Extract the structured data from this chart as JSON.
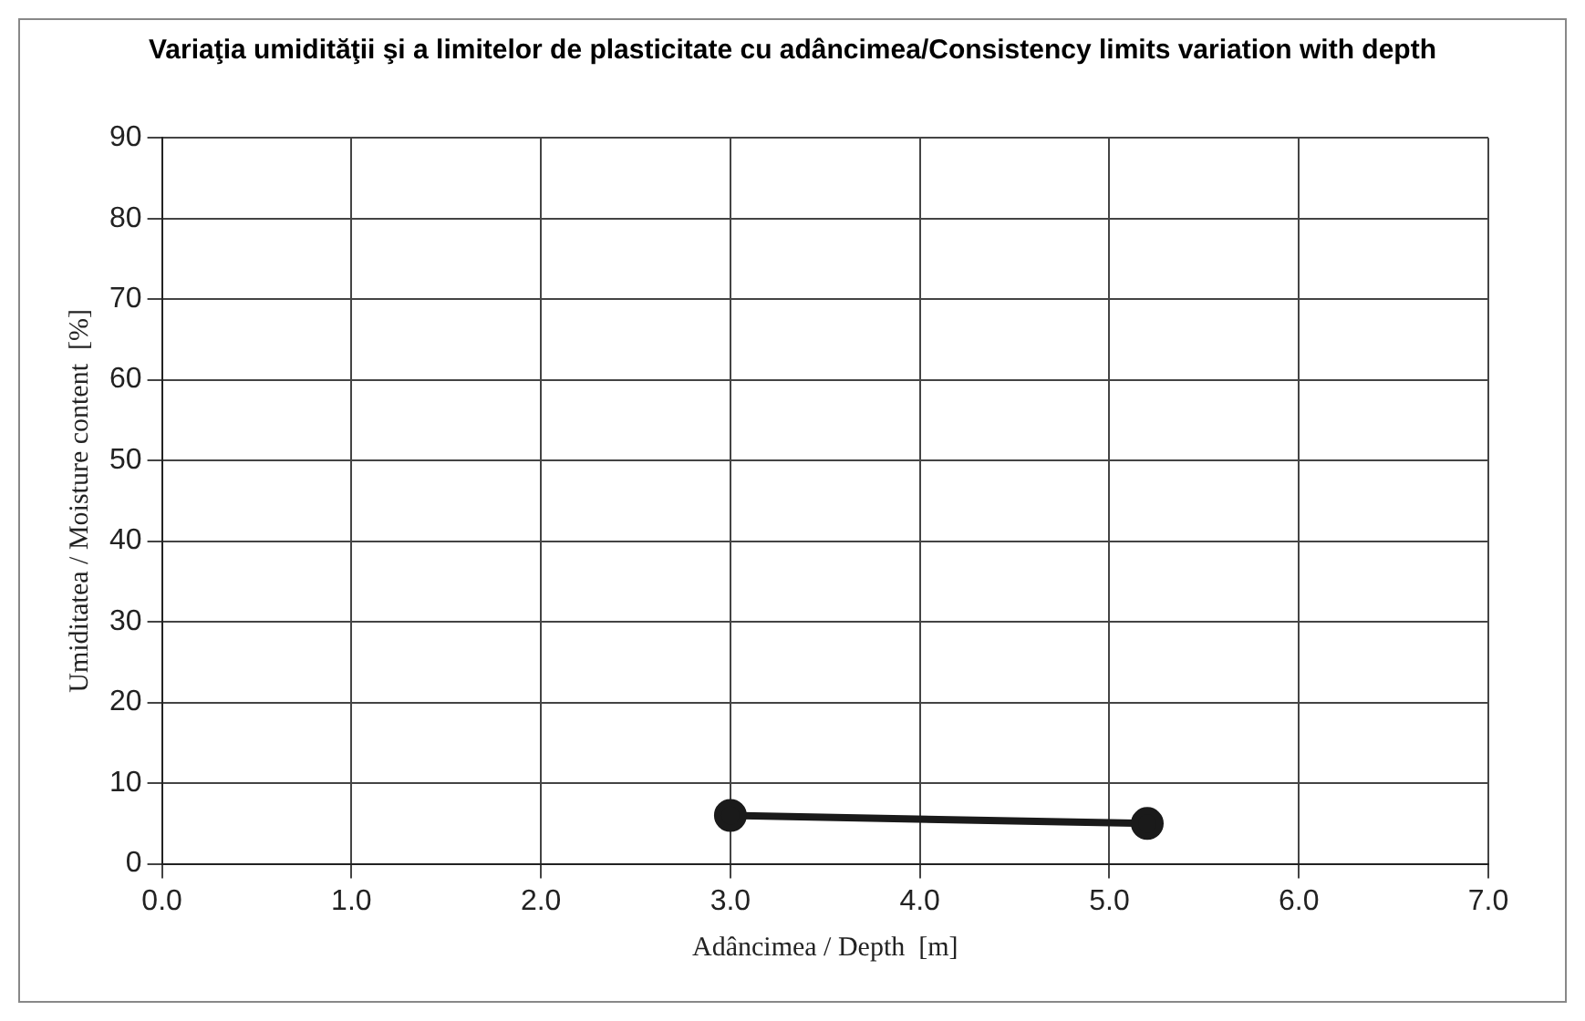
{
  "chart_data": {
    "type": "line",
    "title": "Variaţia umidităţii şi a limitelor de plasticitate cu adâncimea/Consistency limits variation with depth",
    "xlabel": "Adâncimea / Depth  [m]",
    "ylabel": "Umiditatea / Moisture content  [%]",
    "x": [
      3.0,
      5.2
    ],
    "series": [
      {
        "color": "#1a1a1a",
        "values": [
          6,
          5
        ]
      }
    ],
    "xlim": [
      0,
      7
    ],
    "xticks": [
      {
        "value": 0,
        "label": "0.0"
      },
      {
        "value": 1,
        "label": "1.0"
      },
      {
        "value": 2,
        "label": "2.0"
      },
      {
        "value": 3,
        "label": "3.0"
      },
      {
        "value": 4,
        "label": "4.0"
      },
      {
        "value": 5,
        "label": "5.0"
      },
      {
        "value": 6,
        "label": "6.0"
      },
      {
        "value": 7,
        "label": "7.0"
      }
    ],
    "ylim": [
      0,
      90
    ],
    "yticks": [
      0,
      10,
      20,
      30,
      40,
      50,
      60,
      70,
      80,
      90
    ],
    "grid": true,
    "legend": false,
    "marker": "circle",
    "line_style": "solid"
  }
}
